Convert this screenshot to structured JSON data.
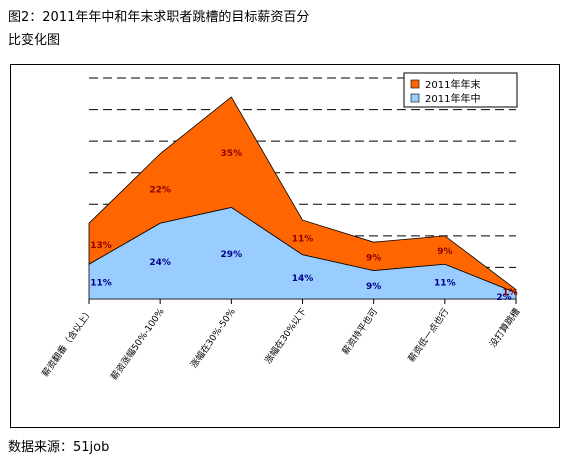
{
  "header": {
    "title_line1": "图2：2011年年中和年末求职者跳槽的目标薪资百分",
    "title_line2": "比变化图"
  },
  "footer": {
    "source": "数据来源：51job"
  },
  "colors": {
    "year_end": "#ff6600",
    "year_mid": "#99ccff",
    "year_end_label": "#8b0000",
    "year_mid_label": "#00008b"
  },
  "chart_data": {
    "type": "area",
    "stacked": true,
    "categories": [
      "薪资翻番（含以上）",
      "薪资涨幅50%-100%",
      "涨幅在30%-50%",
      "涨幅在30%以下",
      "薪资持平也可",
      "薪资低一点也行",
      "没打算跳槽"
    ],
    "series": [
      {
        "name": "2011年年中",
        "values": [
          11,
          24,
          29,
          14,
          9,
          11,
          2
        ]
      },
      {
        "name": "2011年年末",
        "values": [
          13,
          22,
          35,
          11,
          9,
          9,
          1
        ]
      }
    ],
    "legend": {
      "placement": "top-right",
      "labels": [
        "2011年年末",
        "2011年年中"
      ]
    },
    "data_labels": {
      "year_mid": [
        "11%",
        "24%",
        "29%",
        "14%",
        "9%",
        "11%",
        "2%"
      ],
      "year_end": [
        "13%",
        "22%",
        "35%",
        "11%",
        "9%",
        "9%",
        "1%"
      ]
    },
    "ylim": [
      0,
      70
    ],
    "grid": true,
    "title": "",
    "xlabel": "",
    "ylabel": ""
  }
}
